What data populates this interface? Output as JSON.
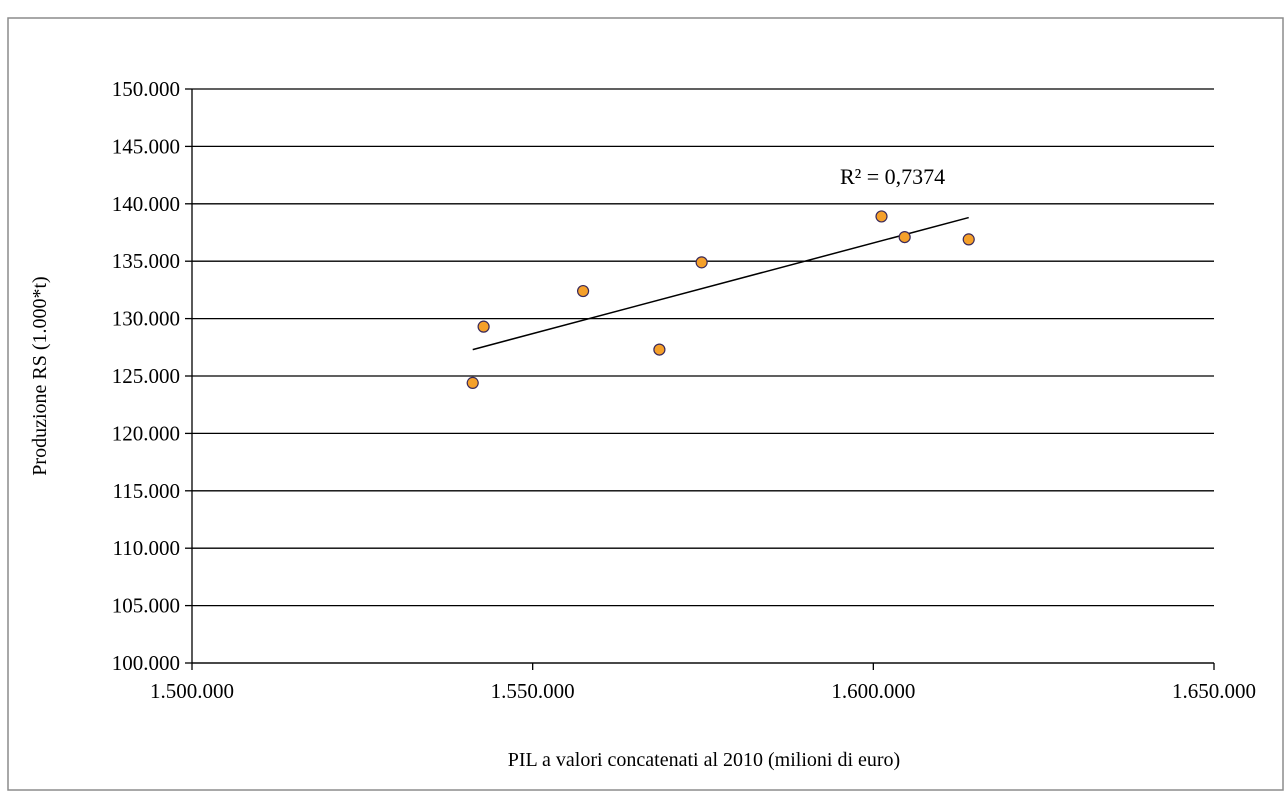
{
  "chart_data": {
    "type": "scatter",
    "title": "",
    "xlabel": "PIL a valori concatenati al 2010 (milioni di euro)",
    "ylabel": "Produzione RS (1.000*t)",
    "xlim": [
      1500000,
      1650000
    ],
    "ylim": [
      100000,
      150000
    ],
    "x_ticks": [
      1500000,
      1550000,
      1600000,
      1650000
    ],
    "x_tick_labels": [
      "1.500.000",
      "1.550.000",
      "1.600.000",
      "1.650.000"
    ],
    "y_ticks": [
      100000,
      105000,
      110000,
      115000,
      120000,
      125000,
      130000,
      135000,
      140000,
      145000,
      150000
    ],
    "y_tick_labels": [
      "100.000",
      "105.000",
      "110.000",
      "115.000",
      "120.000",
      "125.000",
      "130.000",
      "135.000",
      "140.000",
      "145.000",
      "150.000"
    ],
    "grid": "horizontal",
    "marker_color": "#f5a02a",
    "marker_edge_color": "#3a2a5a",
    "points": [
      {
        "x": 1541200,
        "y": 124400
      },
      {
        "x": 1542800,
        "y": 129300
      },
      {
        "x": 1557400,
        "y": 132400
      },
      {
        "x": 1568600,
        "y": 127300
      },
      {
        "x": 1574800,
        "y": 134900
      },
      {
        "x": 1601200,
        "y": 138900
      },
      {
        "x": 1604600,
        "y": 137100
      },
      {
        "x": 1614000,
        "y": 136900
      }
    ],
    "trendline": {
      "type": "linear",
      "x_start": 1541200,
      "x_end": 1614000,
      "y_start": 127300,
      "y_end": 138800,
      "label": "R² = 0,7374"
    }
  }
}
